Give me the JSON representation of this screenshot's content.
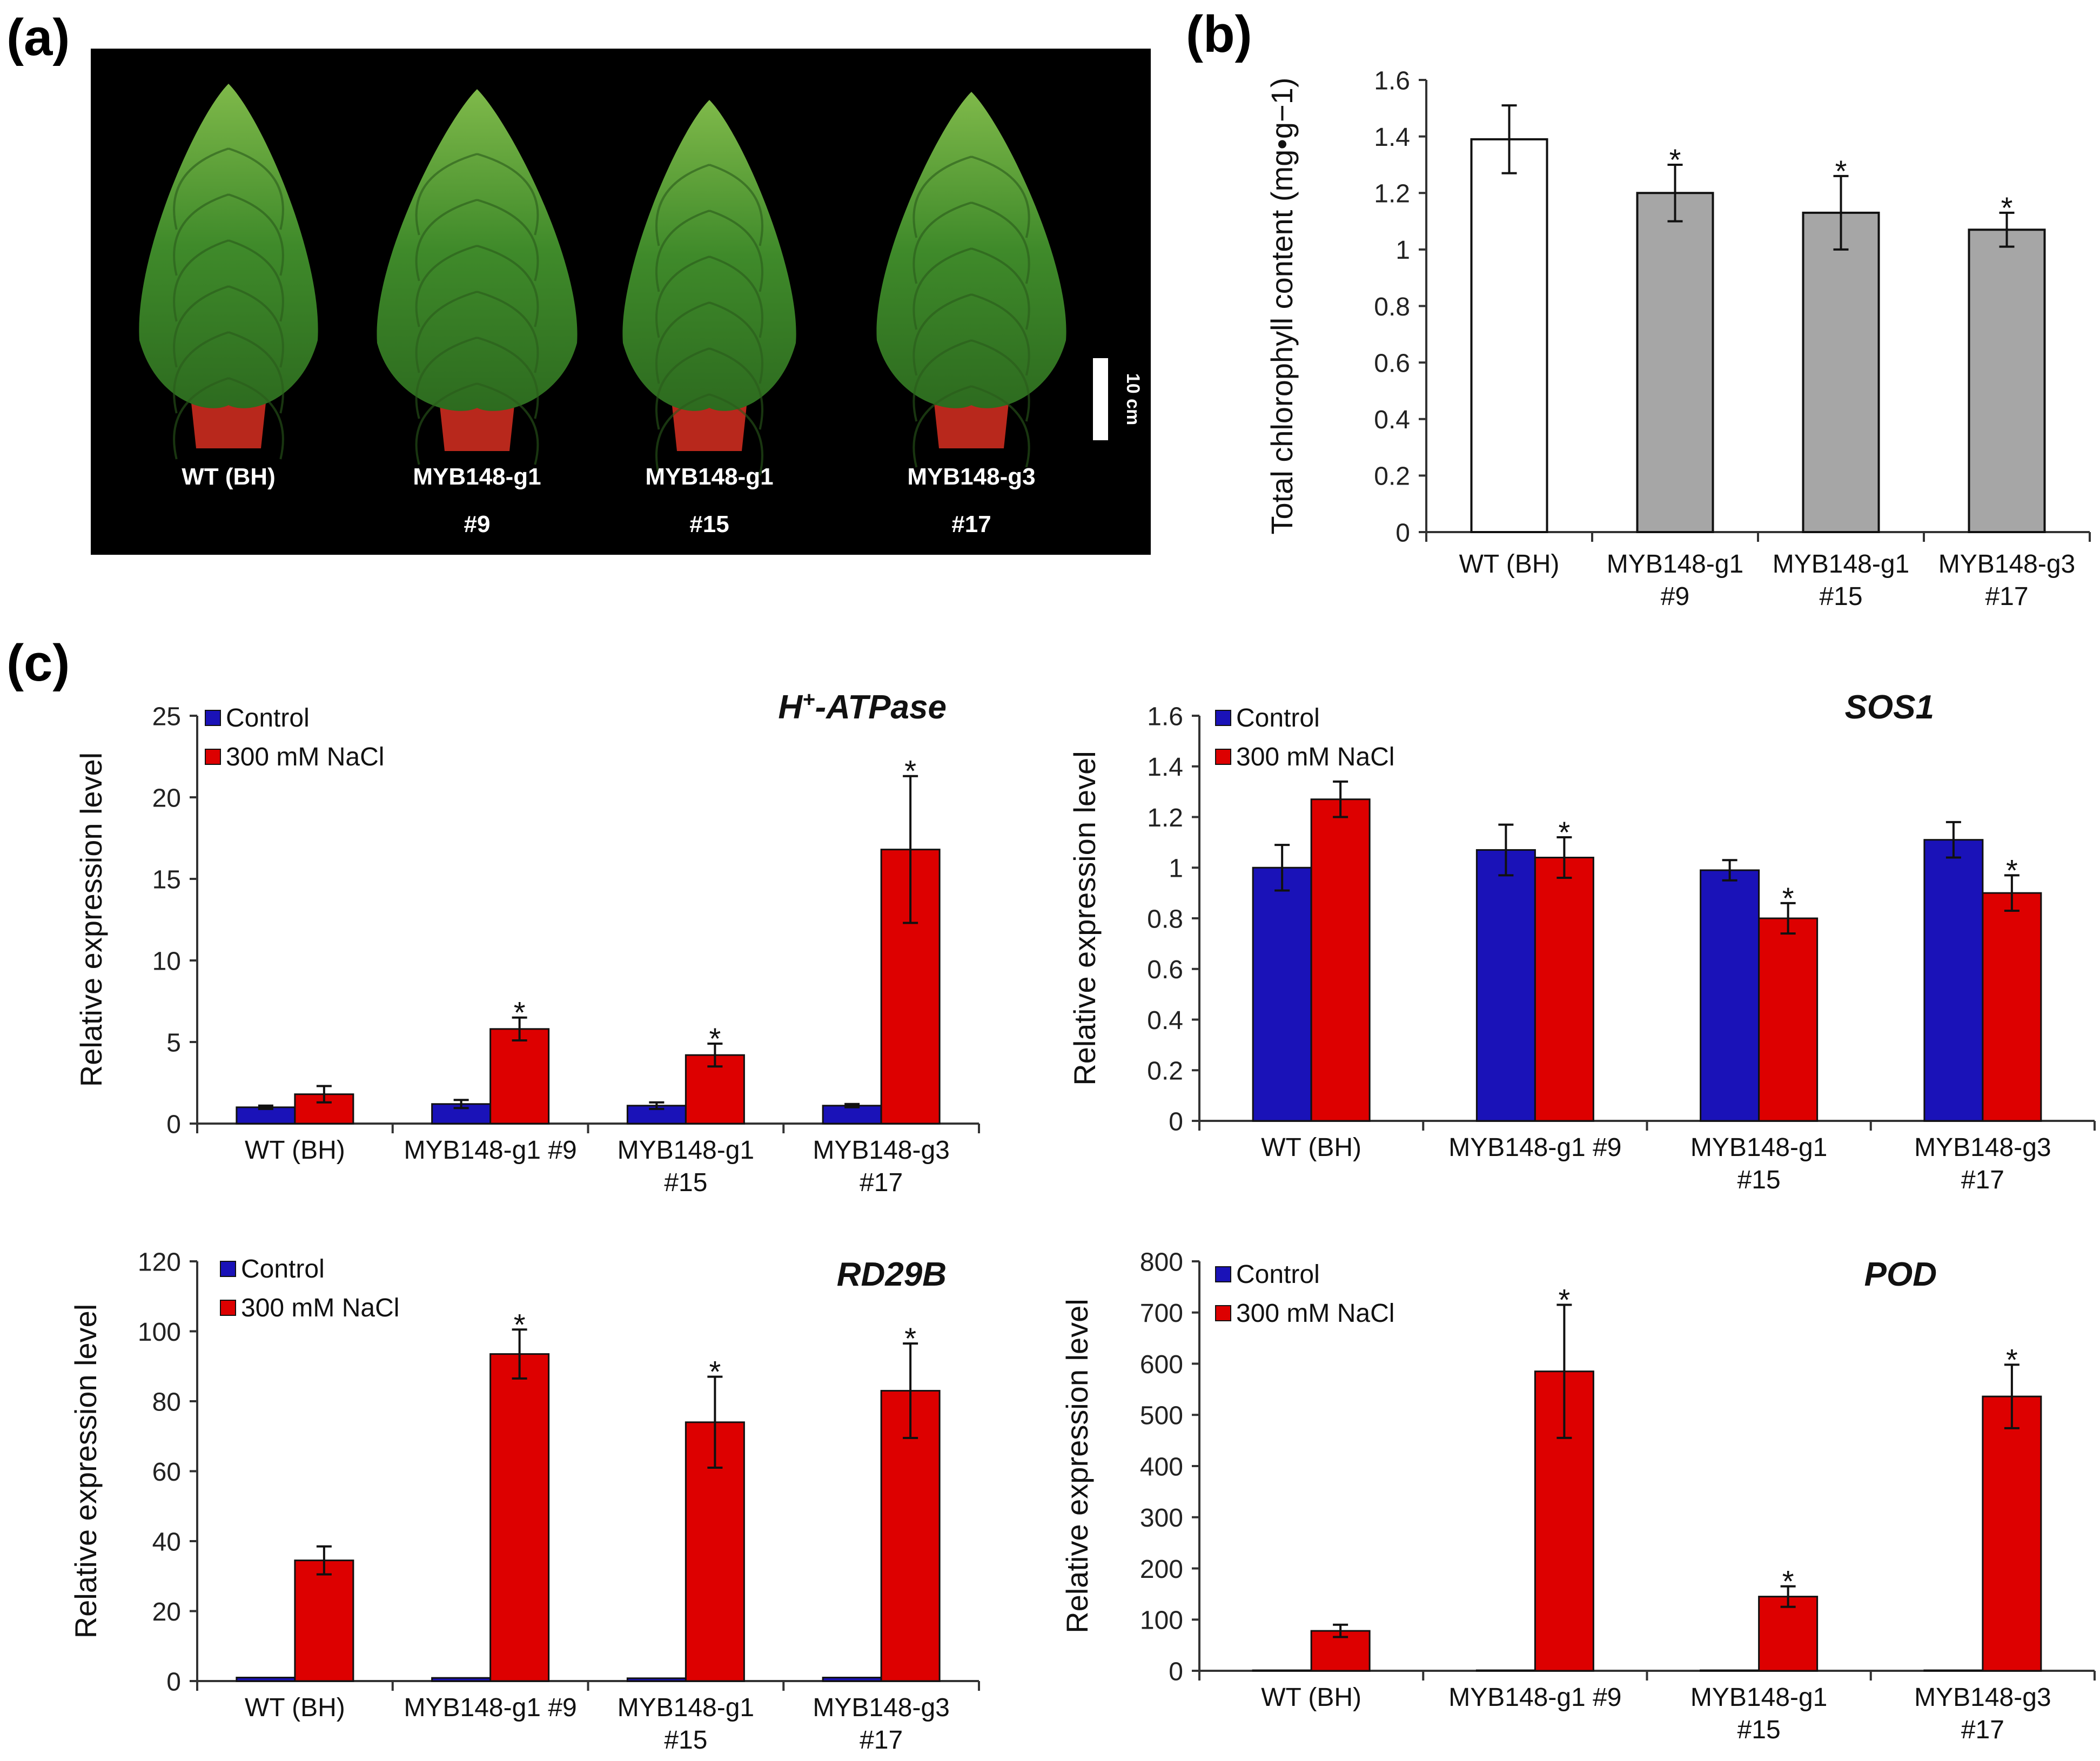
{
  "panels": {
    "a": "(a)",
    "b": "(b)",
    "c": "(c)"
  },
  "colors": {
    "control": "#1a12b8",
    "nacl": "#dd0000",
    "wt": "#ffffff",
    "mutant": "#a6a6a6",
    "leaf": "#3f8a2a",
    "pot": "#b8281c"
  },
  "photo": {
    "plants": [
      {
        "label1": "WT (BH)",
        "label2": ""
      },
      {
        "label1": "MYB148-g1",
        "label2": "#9"
      },
      {
        "label1": "MYB148-g1",
        "label2": "#15"
      },
      {
        "label1": "MYB148-g3",
        "label2": "#17"
      }
    ],
    "scale_bar": "10 cm"
  },
  "chart_data": [
    {
      "id": "b",
      "type": "bar",
      "categories": [
        [
          "WT (BH)"
        ],
        [
          "MYB148-g1",
          "#9"
        ],
        [
          "MYB148-g1",
          "#15"
        ],
        [
          "MYB148-g3",
          "#17"
        ]
      ],
      "values": [
        1.39,
        1.2,
        1.13,
        1.07
      ],
      "errors": [
        0.12,
        0.1,
        0.13,
        0.06
      ],
      "significant": [
        false,
        true,
        true,
        true
      ],
      "ylabel": "Total chlorophyll content (mg•g−1)",
      "ylim": [
        0,
        1.6
      ],
      "yticks": [
        "0",
        "0.2",
        "0.4",
        "0.6",
        "0.8",
        "1",
        "1.2",
        "1.4",
        "1.6"
      ],
      "tick_values": [
        0,
        0.2,
        0.4,
        0.6,
        0.8,
        1,
        1.2,
        1.4,
        1.6
      ],
      "grid": false
    },
    {
      "id": "c1",
      "type": "bar",
      "title": "H+-ATPase",
      "title_main": "H",
      "title_sup": "+",
      "title_rest": "-ATPase",
      "ylabel": "Relative expression level",
      "categories": [
        [
          "WT (BH)"
        ],
        [
          "MYB148-g1 #9"
        ],
        [
          "MYB148-g1",
          "#15"
        ],
        [
          "MYB148-g3",
          "#17"
        ]
      ],
      "ylim": [
        0,
        25
      ],
      "tick_values": [
        0,
        5,
        10,
        15,
        20,
        25
      ],
      "yticks": [
        "0",
        "5",
        "10",
        "15",
        "20",
        "25"
      ],
      "legend": [
        "Control",
        "300 mM NaCl"
      ],
      "legend_position": "top-left",
      "series": [
        {
          "name": "Control",
          "values": [
            1.0,
            1.2,
            1.1,
            1.1
          ],
          "errors": [
            0.1,
            0.25,
            0.2,
            0.1
          ],
          "significant": [
            false,
            false,
            false,
            false
          ]
        },
        {
          "name": "300 mM NaCl",
          "values": [
            1.8,
            5.8,
            4.2,
            16.8
          ],
          "errors": [
            0.5,
            0.7,
            0.7,
            4.5
          ],
          "significant": [
            false,
            true,
            true,
            true
          ]
        }
      ]
    },
    {
      "id": "c2",
      "type": "bar",
      "title": "SOS1",
      "ylabel": "Relative expression level",
      "categories": [
        [
          "WT (BH)"
        ],
        [
          "MYB148-g1 #9"
        ],
        [
          "MYB148-g1",
          "#15"
        ],
        [
          "MYB148-g3",
          "#17"
        ]
      ],
      "ylim": [
        0,
        1.6
      ],
      "tick_values": [
        0,
        0.2,
        0.4,
        0.6,
        0.8,
        1,
        1.2,
        1.4,
        1.6
      ],
      "yticks": [
        "0",
        "0.2",
        "0.4",
        "0.6",
        "0.8",
        "1",
        "1.2",
        "1.4",
        "1.6"
      ],
      "legend": [
        "Control",
        "300 mM NaCl"
      ],
      "legend_position": "top-left",
      "series": [
        {
          "name": "Control",
          "values": [
            1.0,
            1.07,
            0.99,
            1.11
          ],
          "errors": [
            0.09,
            0.1,
            0.04,
            0.07
          ],
          "significant": [
            false,
            false,
            false,
            false
          ]
        },
        {
          "name": "300 mM NaCl",
          "values": [
            1.27,
            1.04,
            0.8,
            0.9
          ],
          "errors": [
            0.07,
            0.08,
            0.06,
            0.07
          ],
          "significant": [
            false,
            true,
            true,
            true
          ]
        }
      ]
    },
    {
      "id": "c3",
      "type": "bar",
      "title": "RD29B",
      "ylabel": "Relative expression level",
      "categories": [
        [
          "WT (BH)"
        ],
        [
          "MYB148-g1 #9"
        ],
        [
          "MYB148-g1",
          "#15"
        ],
        [
          "MYB148-g3",
          "#17"
        ]
      ],
      "ylim": [
        0,
        120
      ],
      "tick_values": [
        0,
        20,
        40,
        60,
        80,
        100,
        120
      ],
      "yticks": [
        "0",
        "20",
        "40",
        "60",
        "80",
        "100",
        "120"
      ],
      "legend": [
        "Control",
        "300 mM NaCl"
      ],
      "legend_position": "top-left",
      "series": [
        {
          "name": "Control",
          "values": [
            1.0,
            0.9,
            0.8,
            1.0
          ],
          "errors": [
            0,
            0,
            0,
            0
          ],
          "significant": [
            false,
            false,
            false,
            false
          ]
        },
        {
          "name": "300 mM NaCl",
          "values": [
            34.5,
            93.5,
            74,
            83
          ],
          "errors": [
            4,
            7,
            13,
            13.5
          ],
          "significant": [
            false,
            true,
            true,
            true
          ]
        }
      ]
    },
    {
      "id": "c4",
      "type": "bar",
      "title": "POD",
      "ylabel": "Relative expression level",
      "categories": [
        [
          "WT (BH)"
        ],
        [
          "MYB148-g1 #9"
        ],
        [
          "MYB148-g1",
          "#15"
        ],
        [
          "MYB148-g3",
          "#17"
        ]
      ],
      "ylim": [
        0,
        800
      ],
      "tick_values": [
        0,
        100,
        200,
        300,
        400,
        500,
        600,
        700,
        800
      ],
      "yticks": [
        "0",
        "100",
        "200",
        "300",
        "400",
        "500",
        "600",
        "700",
        "800"
      ],
      "legend": [
        "Control",
        "300 mM NaCl"
      ],
      "legend_position": "top-left",
      "series": [
        {
          "name": "Control",
          "values": [
            1,
            1,
            1,
            1
          ],
          "errors": [
            0,
            0,
            0,
            0
          ],
          "significant": [
            false,
            false,
            false,
            false
          ]
        },
        {
          "name": "300 mM NaCl",
          "values": [
            78,
            585,
            145,
            536
          ],
          "errors": [
            12,
            130,
            20,
            62
          ],
          "significant": [
            false,
            true,
            true,
            true
          ]
        }
      ]
    }
  ]
}
